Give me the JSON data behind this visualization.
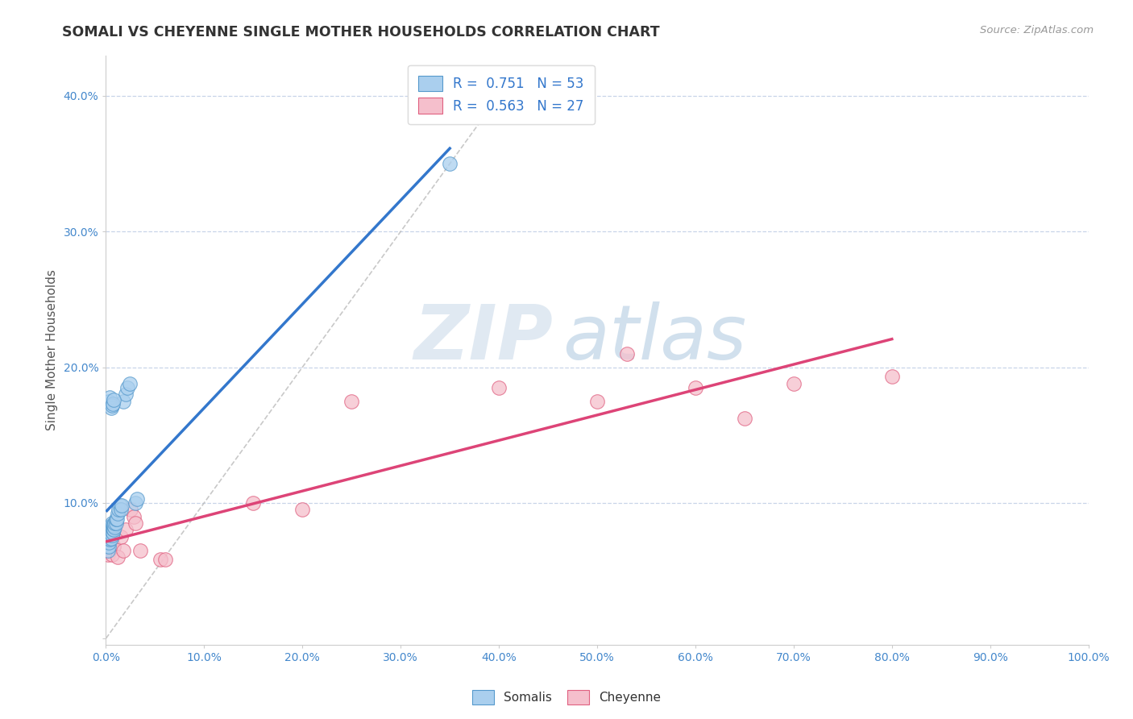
{
  "title": "SOMALI VS CHEYENNE SINGLE MOTHER HOUSEHOLDS CORRELATION CHART",
  "source": "Source: ZipAtlas.com",
  "ylabel": "Single Mother Households",
  "xlabel": "",
  "xlim": [
    0,
    1.0
  ],
  "ylim": [
    -0.005,
    0.43
  ],
  "xticks": [
    0.0,
    0.1,
    0.2,
    0.3,
    0.4,
    0.5,
    0.6,
    0.7,
    0.8,
    0.9,
    1.0
  ],
  "yticks": [
    0.0,
    0.1,
    0.2,
    0.3,
    0.4
  ],
  "xticklabels": [
    "0.0%",
    "10.0%",
    "20.0%",
    "30.0%",
    "40.0%",
    "50.0%",
    "60.0%",
    "70.0%",
    "80.0%",
    "90.0%",
    "100.0%"
  ],
  "yticklabels": [
    "",
    "10.0%",
    "20.0%",
    "30.0%",
    "40.0%"
  ],
  "blue_fill": "#aacfee",
  "pink_fill": "#f5bfcc",
  "blue_edge": "#5599cc",
  "pink_edge": "#e06080",
  "blue_line": "#3377cc",
  "pink_line": "#dd4477",
  "gray_dash": "#bbbbbb",
  "watermark_zip": "ZIP",
  "watermark_atlas": "atlas",
  "R_blue": "0.751",
  "N_blue": "53",
  "R_pink": "0.563",
  "N_pink": "27",
  "somali_x": [
    0.001,
    0.001,
    0.001,
    0.002,
    0.002,
    0.002,
    0.002,
    0.002,
    0.003,
    0.003,
    0.003,
    0.003,
    0.003,
    0.004,
    0.004,
    0.004,
    0.004,
    0.005,
    0.005,
    0.005,
    0.005,
    0.006,
    0.006,
    0.006,
    0.006,
    0.007,
    0.007,
    0.007,
    0.008,
    0.008,
    0.009,
    0.009,
    0.01,
    0.01,
    0.011,
    0.012,
    0.013,
    0.014,
    0.015,
    0.016,
    0.018,
    0.02,
    0.022,
    0.024,
    0.003,
    0.004,
    0.005,
    0.006,
    0.007,
    0.008,
    0.03,
    0.032,
    0.35
  ],
  "somali_y": [
    0.07,
    0.075,
    0.068,
    0.072,
    0.078,
    0.08,
    0.082,
    0.065,
    0.068,
    0.071,
    0.074,
    0.077,
    0.08,
    0.073,
    0.076,
    0.079,
    0.082,
    0.074,
    0.077,
    0.08,
    0.083,
    0.076,
    0.079,
    0.082,
    0.085,
    0.078,
    0.081,
    0.084,
    0.08,
    0.083,
    0.082,
    0.085,
    0.085,
    0.088,
    0.088,
    0.092,
    0.095,
    0.098,
    0.095,
    0.098,
    0.175,
    0.18,
    0.185,
    0.188,
    0.175,
    0.178,
    0.17,
    0.172,
    0.173,
    0.176,
    0.1,
    0.103,
    0.35
  ],
  "cheyenne_x": [
    0.001,
    0.002,
    0.003,
    0.005,
    0.006,
    0.008,
    0.01,
    0.012,
    0.015,
    0.018,
    0.02,
    0.025,
    0.028,
    0.03,
    0.035,
    0.055,
    0.06,
    0.15,
    0.2,
    0.25,
    0.4,
    0.5,
    0.53,
    0.6,
    0.65,
    0.7,
    0.8
  ],
  "cheyenne_y": [
    0.068,
    0.062,
    0.065,
    0.072,
    0.062,
    0.068,
    0.085,
    0.06,
    0.075,
    0.065,
    0.08,
    0.095,
    0.09,
    0.085,
    0.065,
    0.058,
    0.058,
    0.1,
    0.095,
    0.175,
    0.185,
    0.175,
    0.21,
    0.185,
    0.162,
    0.188,
    0.193
  ]
}
